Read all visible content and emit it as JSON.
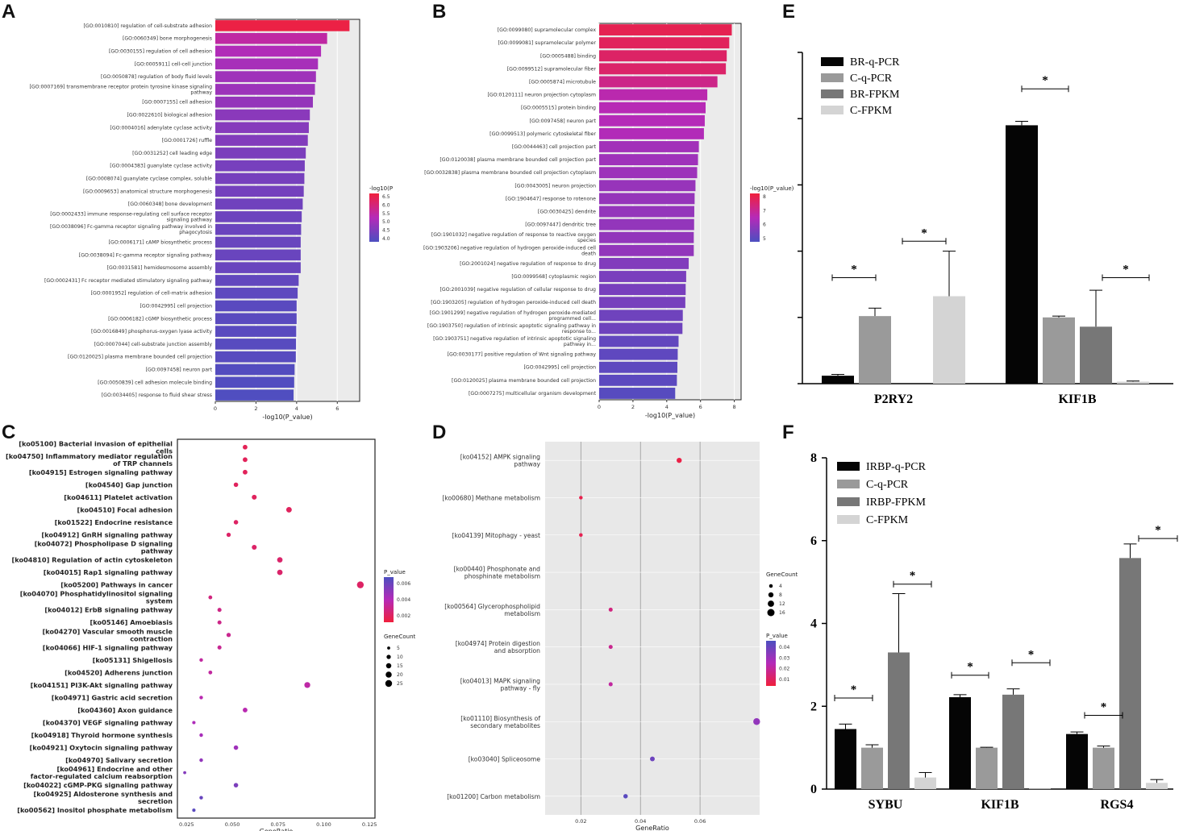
{
  "figure": {
    "panel_letters": [
      "A",
      "B",
      "C",
      "D",
      "E",
      "F"
    ]
  },
  "chart_data": [
    {
      "id": "A",
      "type": "bar",
      "orientation": "horizontal",
      "xlabel": "-log10(P_value)",
      "xticks": [
        "0",
        "2",
        "4",
        "6"
      ],
      "xlim": [
        0,
        7.1
      ],
      "color_legend_title": "-log10(P",
      "color_legend_ticks": [
        "6.5",
        "6.0",
        "5.5",
        "5.0",
        "4.5",
        "4.0"
      ],
      "color_range": [
        3.8,
        6.7
      ],
      "categories": [
        "[GO:0010810] regulation of cell-substrate adhesion",
        "[GO:0060349] bone morphogenesis",
        "[GO:0030155] regulation of cell adhesion",
        "[GO:0005911] cell-cell junction",
        "[GO:0050878] regulation of body fluid levels",
        "[GO:0007169] transmembrane receptor protein tyrosine kinase signaling pathway",
        "[GO:0007155] cell adhesion",
        "[GO:0022610] biological adhesion",
        "[GO:0004016] adenylate cyclase activity",
        "[GO:0001726] ruffle",
        "[GO:0031252] cell leading edge",
        "[GO:0004383] guanylate cyclase activity",
        "[GO:0008074] guanylate cyclase complex, soluble",
        "[GO:0009653] anatomical structure morphogenesis",
        "[GO:0060348] bone development",
        "[GO:0002433] immune response-regulating cell surface receptor signaling pathway",
        "[GO:0038096] Fc-gamma receptor signaling pathway involved in phagocytosis",
        "[GO:0006171] cAMP biosynthetic process",
        "[GO:0038094] Fc-gamma receptor signaling pathway",
        "[GO:0031581] hemidesmosome assembly",
        "[GO:0002431] Fc receptor mediated stimulatory signaling pathway",
        "[GO:0001952] regulation of cell-matrix adhesion",
        "[GO:0042995] cell projection",
        "[GO:0006182] cGMP biosynthetic process",
        "[GO:0016849] phosphorus-oxygen lyase activity",
        "[GO:0007044] cell-substrate junction assembly",
        "[GO:0120025] plasma membrane bounded cell projection",
        "[GO:0097458] neuron part",
        "[GO:0050839] cell adhesion molecule binding",
        "[GO:0034405] response to fluid shear stress"
      ],
      "values": [
        6.6,
        5.5,
        5.2,
        5.05,
        4.95,
        4.9,
        4.8,
        4.65,
        4.6,
        4.55,
        4.45,
        4.4,
        4.38,
        4.35,
        4.3,
        4.25,
        4.22,
        4.2,
        4.2,
        4.2,
        4.1,
        4.05,
        4.0,
        4.0,
        3.98,
        3.97,
        3.96,
        3.9,
        3.88,
        3.85
      ]
    },
    {
      "id": "B",
      "type": "bar",
      "orientation": "horizontal",
      "xlabel": "-log10(P_value)",
      "xticks": [
        "0",
        "2",
        "4",
        "6",
        "8"
      ],
      "xlim": [
        0,
        8.4
      ],
      "color_legend_title": "-log10(P_value)",
      "color_legend_ticks": [
        "8",
        "7",
        "6",
        "5"
      ],
      "color_range": [
        4.3,
        8.2
      ],
      "categories": [
        "[GO:0099080] supramolecular complex",
        "[GO:0099081] supramolecular polymer",
        "[GO:0005488] binding",
        "[GO:0099512] supramolecular fiber",
        "[GO:0005874] microtubule",
        "[GO:0120111] neuron projection cytoplasm",
        "[GO:0005515] protein binding",
        "[GO:0097458] neuron part",
        "[GO:0099513] polymeric cytoskeletal fiber",
        "[GO:0044463] cell projection part",
        "[GO:0120038] plasma membrane bounded cell projection part",
        "[GO:0032838] plasma membrane bounded cell projection cytoplasm",
        "[GO:0043005] neuron projection",
        "[GO:1904647] response to rotenone",
        "[GO:0030425] dendrite",
        "[GO:0097447] dendritic tree",
        "[GO:1901032] negative regulation of response to reactive oxygen species",
        "[GO:1903206] negative regulation of hydrogen peroxide-induced cell death",
        "[GO:2001024] negative regulation of response to drug",
        "[GO:0099568] cytoplasmic region",
        "[GO:2001039] negative regulation of cellular response to drug",
        "[GO:1903205] regulation of hydrogen peroxide-induced cell death",
        "[GO:1901299] negative regulation of hydrogen peroxide-mediated programmed cell...",
        "[GO:1903750] regulation of intrinsic apoptotic signaling pathway in response to...",
        "[GO:1903751] negative regulation of intrinsic apoptotic signaling pathway in...",
        "[GO:0030177] positive regulation of Wnt signaling pathway",
        "[GO:0042995] cell projection",
        "[GO:0120025] plasma membrane bounded cell projection",
        "[GO:0007275] multicellular organism development"
      ],
      "values": [
        7.85,
        7.7,
        7.55,
        7.5,
        7.0,
        6.4,
        6.3,
        6.25,
        6.2,
        5.9,
        5.85,
        5.8,
        5.7,
        5.65,
        5.63,
        5.62,
        5.6,
        5.6,
        5.3,
        5.15,
        5.12,
        5.1,
        4.95,
        4.93,
        4.7,
        4.65,
        4.63,
        4.6,
        4.5
      ]
    },
    {
      "id": "C",
      "type": "scatter",
      "xlabel": "GeneRatio",
      "xticks": [
        "0.025",
        "0.050",
        "0.075",
        "0.100",
        "0.125"
      ],
      "xlim": [
        0.02,
        0.128
      ],
      "size_legend_title": "GeneCount",
      "size_legend": [
        "5",
        "10",
        "15",
        "20",
        "25"
      ],
      "color_legend_title": "P_value",
      "color_legend_ticks": [
        "0.006",
        "0.004",
        "0.002"
      ],
      "color_range": [
        0.0,
        0.0075
      ],
      "categories": [
        "[ko05100] Bacterial invasion of epithelial cells",
        "[ko04750] Inflammatory mediator regulation of TRP channels",
        "[ko04915] Estrogen signaling pathway",
        "[ko04540] Gap junction",
        "[ko04611] Platelet activation",
        "[ko04510] Focal adhesion",
        "[ko01522] Endocrine resistance",
        "[ko04912] GnRH signaling pathway",
        "[ko04072] Phospholipase D signaling pathway",
        "[ko04810] Regulation of actin cytoskeleton",
        "[ko04015] Rap1 signaling pathway",
        "[ko05200] Pathways in cancer",
        "[ko04070] Phosphatidylinositol signaling system",
        "[ko04012] ErbB signaling pathway",
        "[ko05146] Amoebiasis",
        "[ko04270] Vascular smooth muscle contraction",
        "[ko04066] HIF-1 signaling pathway",
        "[ko05131] Shigellosis",
        "[ko04520] Adherens junction",
        "[ko04151] PI3K-Akt signaling pathway",
        "[ko04971] Gastric acid secretion",
        "[ko04360] Axon guidance",
        "[ko04370] VEGF signaling pathway",
        "[ko04918] Thyroid hormone synthesis",
        "[ko04921] Oxytocin signaling pathway",
        "[ko04970] Salivary secretion",
        "[ko04961] Endocrine and other factor-regulated calcium reabsorption",
        "[ko04022] cGMP-PKG signaling pathway",
        "[ko04925] Aldosterone synthesis and secretion",
        "[ko00562] Inositol phosphate metabolism"
      ],
      "x": [
        0.057,
        0.057,
        0.057,
        0.052,
        0.062,
        0.081,
        0.052,
        0.048,
        0.062,
        0.076,
        0.076,
        0.12,
        0.038,
        0.043,
        0.043,
        0.048,
        0.043,
        0.033,
        0.038,
        0.091,
        0.033,
        0.057,
        0.029,
        0.033,
        0.052,
        0.033,
        0.024,
        0.052,
        0.033,
        0.029
      ],
      "gene_count": [
        12,
        12,
        12,
        11,
        13,
        17,
        11,
        10,
        13,
        16,
        16,
        25,
        8,
        9,
        9,
        10,
        9,
        7,
        8,
        19,
        7,
        12,
        6,
        7,
        11,
        7,
        5,
        11,
        7,
        6
      ],
      "p_value": [
        0.0008,
        0.0009,
        0.0009,
        0.001,
        0.001,
        0.001,
        0.0012,
        0.0013,
        0.0013,
        0.0014,
        0.0014,
        0.0012,
        0.002,
        0.0022,
        0.0023,
        0.0025,
        0.0026,
        0.003,
        0.003,
        0.0032,
        0.0035,
        0.0035,
        0.004,
        0.0042,
        0.0045,
        0.005,
        0.0055,
        0.0058,
        0.0065,
        0.007
      ]
    },
    {
      "id": "D",
      "type": "scatter",
      "xlabel": "GeneRatio",
      "xticks": [
        "0.02",
        "0.04",
        "0.06"
      ],
      "xlim": [
        0.008,
        0.08
      ],
      "size_legend_title": "GeneCount",
      "size_legend": [
        "4",
        "8",
        "12",
        "16"
      ],
      "color_legend_title": "P_value",
      "color_legend_ticks": [
        "0.04",
        "0.03",
        "0.02",
        "0.01"
      ],
      "color_range": [
        0.0,
        0.045
      ],
      "categories": [
        "[ko04152] AMPK signaling pathway",
        "[ko00680] Methane metabolism",
        "[ko04139] Mitophagy - yeast",
        "[ko00440] Phosphonate and phosphinate metabolism",
        "[ko00564] Glycerophospholipid metabolism",
        "[ko04974] Protein digestion and absorption",
        "[ko04013] MAPK signaling pathway - fly",
        "[ko01110] Biosynthesis of secondary metabolites",
        "[ko03040] Spliceosome",
        "[ko01200] Carbon metabolism"
      ],
      "x": [
        0.053,
        0.02,
        0.02,
        null,
        0.03,
        0.03,
        0.03,
        0.079,
        0.044,
        0.035
      ],
      "gene_count": [
        8,
        4,
        4,
        null,
        5,
        5,
        5,
        14,
        7,
        6
      ],
      "p_value": [
        0.002,
        0.003,
        0.004,
        null,
        0.012,
        0.015,
        0.018,
        0.03,
        0.038,
        0.042
      ]
    },
    {
      "id": "E",
      "type": "bar",
      "orientation": "vertical",
      "categories": [
        "P2RY2",
        "KIF1B"
      ],
      "series": [
        {
          "name": "BR-q-PCR",
          "values": [
            0.12,
            3.9
          ],
          "err": [
            0.02,
            0.06
          ]
        },
        {
          "name": "C-q-PCR",
          "values": [
            1.02,
            1.0
          ],
          "err": [
            0.12,
            0.02
          ]
        },
        {
          "name": "BR-FPKM",
          "values": [
            0.0,
            0.86
          ],
          "err": [
            0.0,
            0.55
          ]
        },
        {
          "name": "C-FPKM",
          "values": [
            1.32,
            0.03
          ],
          "err": [
            0.68,
            0.01
          ]
        }
      ],
      "ylim": [
        0,
        5
      ],
      "significance": [
        "*",
        "*",
        "*",
        "*"
      ]
    },
    {
      "id": "F",
      "type": "bar",
      "orientation": "vertical",
      "categories": [
        "SYBU",
        "KIF1B",
        "RGS4"
      ],
      "series": [
        {
          "name": "IRBP-q-PCR",
          "values": [
            1.45,
            2.22,
            1.33
          ],
          "err": [
            0.12,
            0.06,
            0.05
          ]
        },
        {
          "name": "C-q-PCR",
          "values": [
            1.0,
            1.0,
            1.0
          ],
          "err": [
            0.07,
            0.01,
            0.04
          ]
        },
        {
          "name": "IRBP-FPKM",
          "values": [
            3.3,
            2.28,
            5.58
          ],
          "err": [
            1.42,
            0.14,
            0.34
          ]
        },
        {
          "name": "C-FPKM",
          "values": [
            0.28,
            0.01,
            0.15
          ],
          "err": [
            0.12,
            0.0,
            0.08
          ]
        }
      ],
      "ylim": [
        0,
        8
      ],
      "yticks": [
        "0",
        "2",
        "4",
        "6",
        "8"
      ],
      "significance": [
        "*",
        "*",
        "*",
        "*",
        "*",
        "*"
      ]
    }
  ]
}
